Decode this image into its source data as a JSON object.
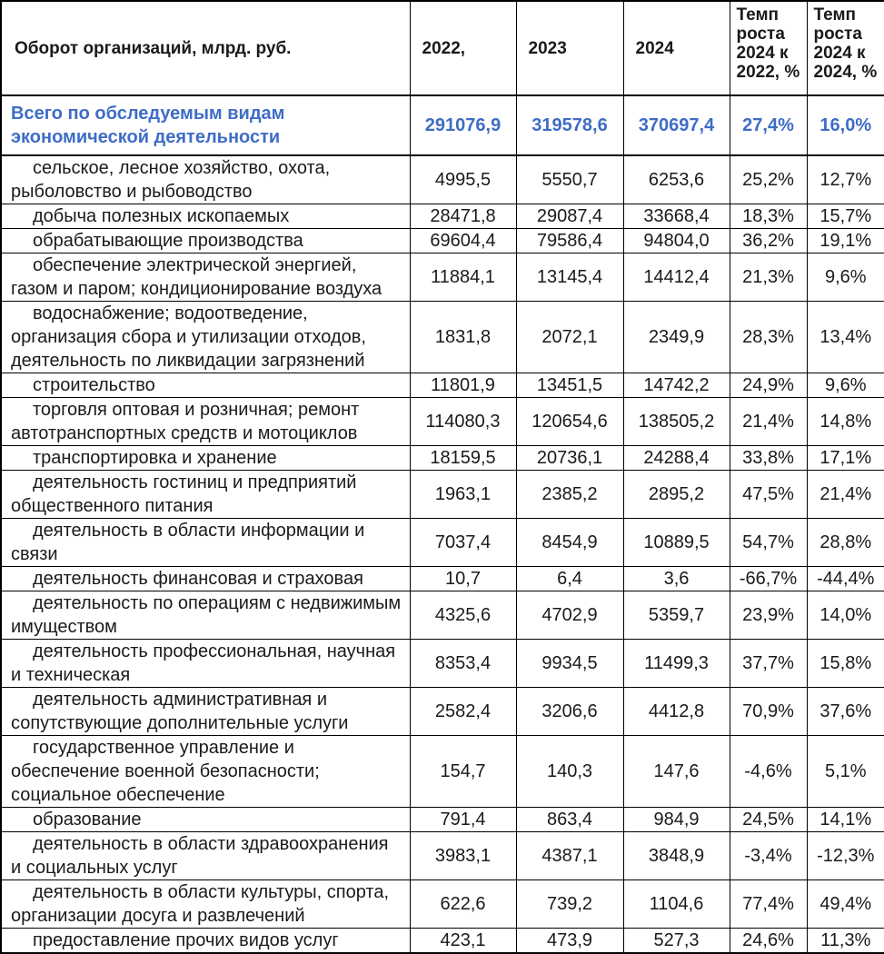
{
  "table": {
    "columns": [
      {
        "id": "indicator",
        "label": "Оборот организаций, млрд. руб."
      },
      {
        "id": "y2022",
        "label": "2022,"
      },
      {
        "id": "y2023",
        "label": "2023"
      },
      {
        "id": "y2024",
        "label": "2024"
      },
      {
        "id": "growth-2024-2022",
        "label": "Темп роста 2024 к 2022, %"
      },
      {
        "id": "growth-2024-2024",
        "label": "Темп роста 2024 к 2024, %"
      }
    ],
    "total_row": {
      "label": "Всего по обследуемым видам экономической деятельности",
      "values": [
        "291076,9",
        "319578,6",
        "370697,4",
        "27,4%",
        "16,0%"
      ]
    },
    "rows": [
      {
        "label": "сельское, лесное хозяйство, охота, рыболовство и рыбоводство",
        "values": [
          "4995,5",
          "5550,7",
          "6253,6",
          "25,2%",
          "12,7%"
        ]
      },
      {
        "label": "добыча полезных ископаемых",
        "values": [
          "28471,8",
          "29087,4",
          "33668,4",
          "18,3%",
          "15,7%"
        ]
      },
      {
        "label": "обрабатывающие производства",
        "values": [
          "69604,4",
          "79586,4",
          "94804,0",
          "36,2%",
          "19,1%"
        ]
      },
      {
        "label": "обеспечение электрической энергией, газом и паром; кондиционирование воздуха",
        "values": [
          "11884,1",
          "13145,4",
          "14412,4",
          "21,3%",
          "9,6%"
        ]
      },
      {
        "label": "водоснабжение; водоотведение, организация сбора и утилизации отходов, деятельность по ликвидации загрязнений",
        "values": [
          "1831,8",
          "2072,1",
          "2349,9",
          "28,3%",
          "13,4%"
        ]
      },
      {
        "label": "строительство",
        "values": [
          "11801,9",
          "13451,5",
          "14742,2",
          "24,9%",
          "9,6%"
        ]
      },
      {
        "label": "торговля оптовая и розничная; ремонт автотранспортных средств и мотоциклов",
        "values": [
          "114080,3",
          "120654,6",
          "138505,2",
          "21,4%",
          "14,8%"
        ]
      },
      {
        "label": "транспортировка и хранение",
        "values": [
          "18159,5",
          "20736,1",
          "24288,4",
          "33,8%",
          "17,1%"
        ]
      },
      {
        "label": "деятельность гостиниц и предприятий общественного питания",
        "values": [
          "1963,1",
          "2385,2",
          "2895,2",
          "47,5%",
          "21,4%"
        ]
      },
      {
        "label": "деятельность в области информации и связи",
        "values": [
          "7037,4",
          "8454,9",
          "10889,5",
          "54,7%",
          "28,8%"
        ]
      },
      {
        "label": "деятельность финансовая и страховая",
        "values": [
          "10,7",
          "6,4",
          "3,6",
          "-66,7%",
          "-44,4%"
        ]
      },
      {
        "label": "деятельность по операциям с недвижимым имуществом",
        "values": [
          "4325,6",
          "4702,9",
          "5359,7",
          "23,9%",
          "14,0%"
        ]
      },
      {
        "label": "деятельность профессиональная, научная и техническая",
        "values": [
          "8353,4",
          "9934,5",
          "11499,3",
          "37,7%",
          "15,8%"
        ]
      },
      {
        "label": "деятельность административная и сопутствующие дополнительные услуги",
        "values": [
          "2582,4",
          "3206,6",
          "4412,8",
          "70,9%",
          "37,6%"
        ]
      },
      {
        "label": "государственное управление и обеспечение военной безопасности; социальное обеспечение",
        "values": [
          "154,7",
          "140,3",
          "147,6",
          "-4,6%",
          "5,1%"
        ]
      },
      {
        "label": "образование",
        "values": [
          "791,4",
          "863,4",
          "984,9",
          "24,5%",
          "14,1%"
        ]
      },
      {
        "label": "деятельность в области здравоохранения и социальных услуг",
        "values": [
          "3983,1",
          "4387,1",
          "3848,9",
          "-3,4%",
          "-12,3%"
        ]
      },
      {
        "label": "деятельность в области культуры, спорта, организации досуга и развлечений",
        "values": [
          "622,6",
          "739,2",
          "1104,6",
          "77,4%",
          "49,4%"
        ]
      },
      {
        "label": "предоставление прочих видов услуг",
        "values": [
          "423,1",
          "473,9",
          "527,3",
          "24,6%",
          "11,3%"
        ]
      }
    ]
  },
  "colors": {
    "accent_blue": "#3E6DC6",
    "border": "#000000",
    "text": "#1A1A1A",
    "background": "#FFFFFF"
  }
}
